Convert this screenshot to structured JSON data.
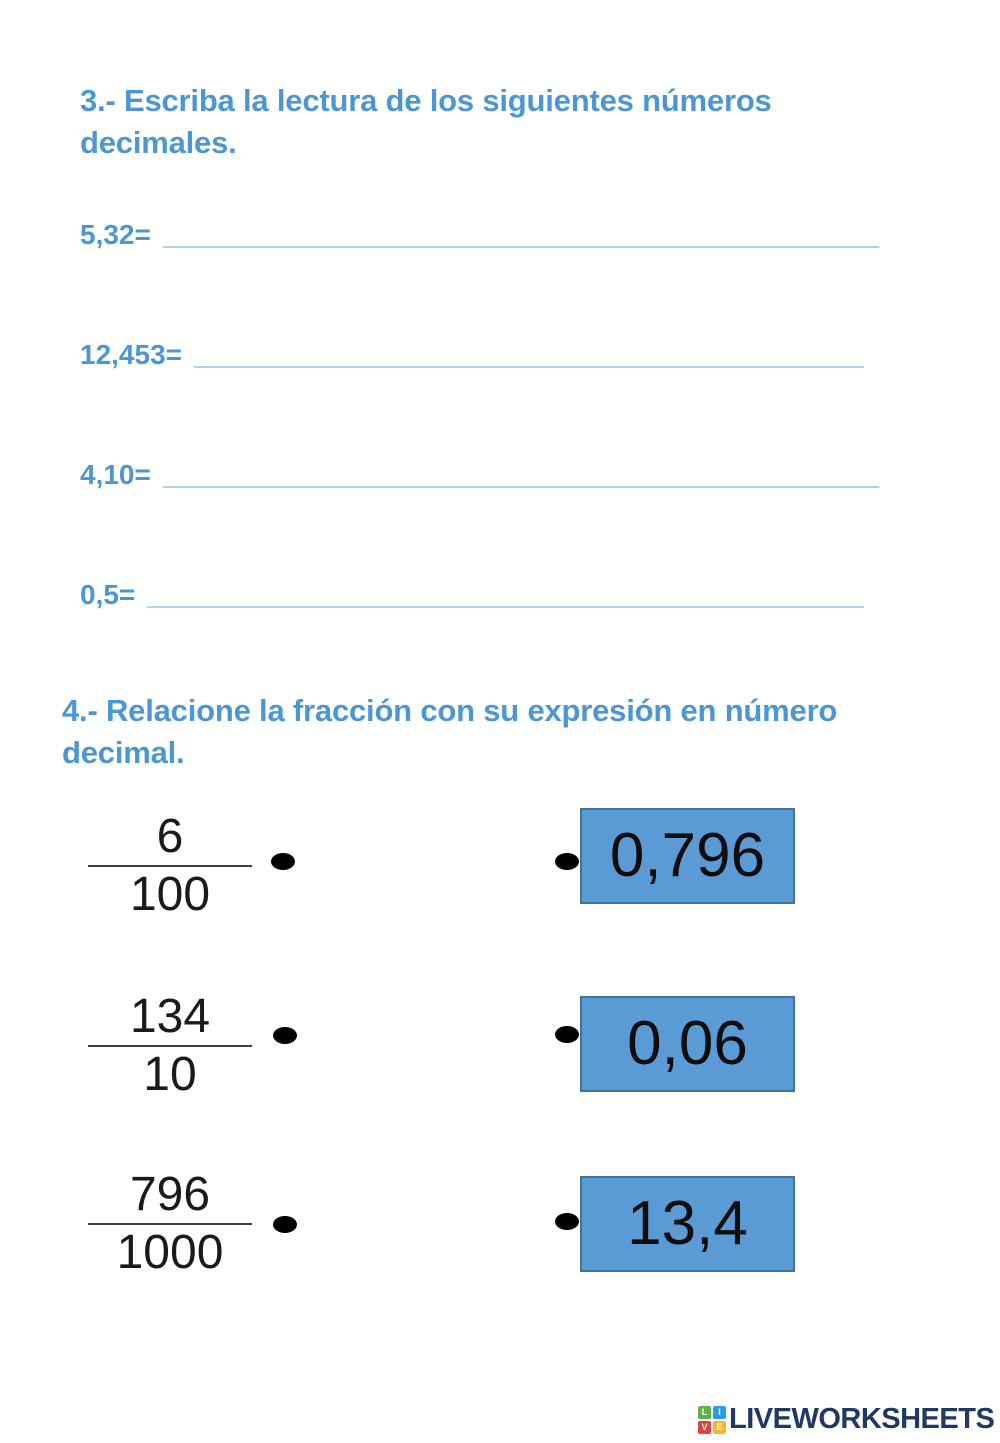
{
  "colors": {
    "accent_blue": "#4d96d5",
    "blank_blue": "#6aa3da",
    "box_fill": "#5b9bd5",
    "box_border": "#41719c",
    "brand_navy": "#1f3864",
    "logo_green": "#5cb54a",
    "logo_blue": "#2e9bea",
    "logo_red": "#e2403c",
    "logo_yellow": "#f4b62e"
  },
  "section3": {
    "title": "3.- Escriba la lectura de los siguientes números decimales.",
    "items": [
      {
        "label": "5,32=",
        "blank": "______________________________________________"
      },
      {
        "label": "12,453=",
        "blank": "___________________________________________"
      },
      {
        "label": "4,10=",
        "blank": "______________________________________________"
      },
      {
        "label": "0,5=",
        "blank": "______________________________________________"
      }
    ]
  },
  "section4": {
    "title": "4.- Relacione la fracción con su expresión en número decimal.",
    "pairs": [
      {
        "numerator": "6",
        "denominator": "100",
        "decimal": "0,796"
      },
      {
        "numerator": "134",
        "denominator": "10",
        "decimal": "0,06"
      },
      {
        "numerator": "796",
        "denominator": "1000",
        "decimal": "13,4"
      }
    ]
  },
  "footer": {
    "brand": "LIVEWORKSHEETS",
    "logo_letters": [
      "L",
      "I",
      "V",
      "E"
    ]
  }
}
